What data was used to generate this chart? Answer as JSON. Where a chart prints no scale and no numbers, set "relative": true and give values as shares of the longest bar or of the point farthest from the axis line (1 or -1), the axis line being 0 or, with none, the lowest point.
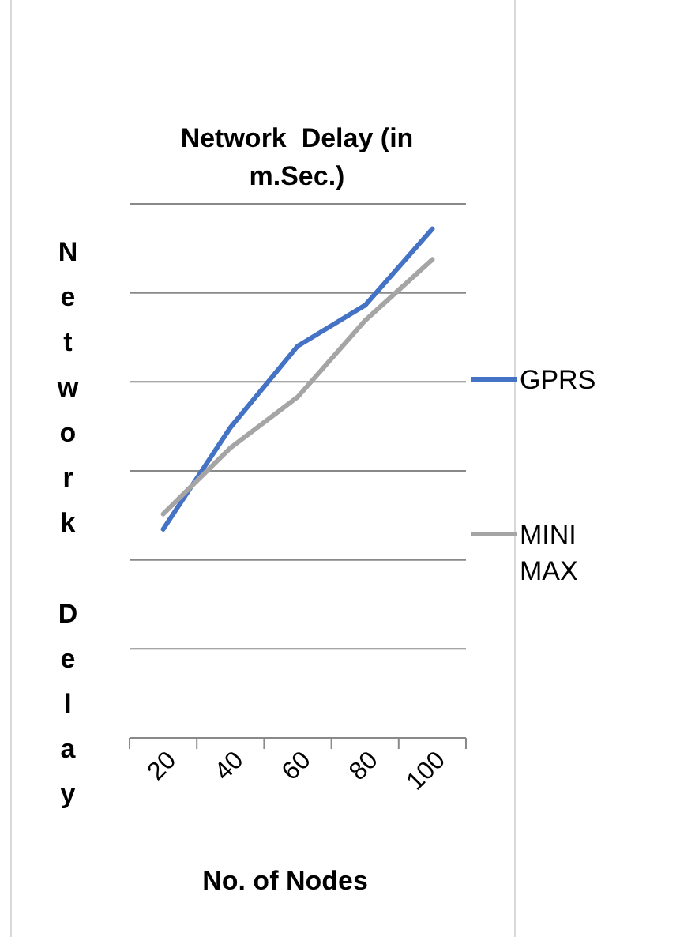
{
  "chart_data": {
    "type": "line",
    "title": "Network  Delay (in m.Sec.)",
    "xlabel": "No. of Nodes",
    "ylabel": "Network Delay",
    "categories": [
      "20",
      "40",
      "60",
      "80",
      "100"
    ],
    "relative": true,
    "grid": "y",
    "legend": "right",
    "marker": "none",
    "line_style": "solid",
    "series": [
      {
        "name": "GPRS",
        "color": "#4472c4",
        "values": [
          0.41,
          0.61,
          0.77,
          0.85,
          1
        ]
      },
      {
        "name": "MINI MAX",
        "color": "#a5a5a5",
        "values": [
          0.44,
          0.57,
          0.67,
          0.82,
          0.94
        ]
      }
    ]
  }
}
